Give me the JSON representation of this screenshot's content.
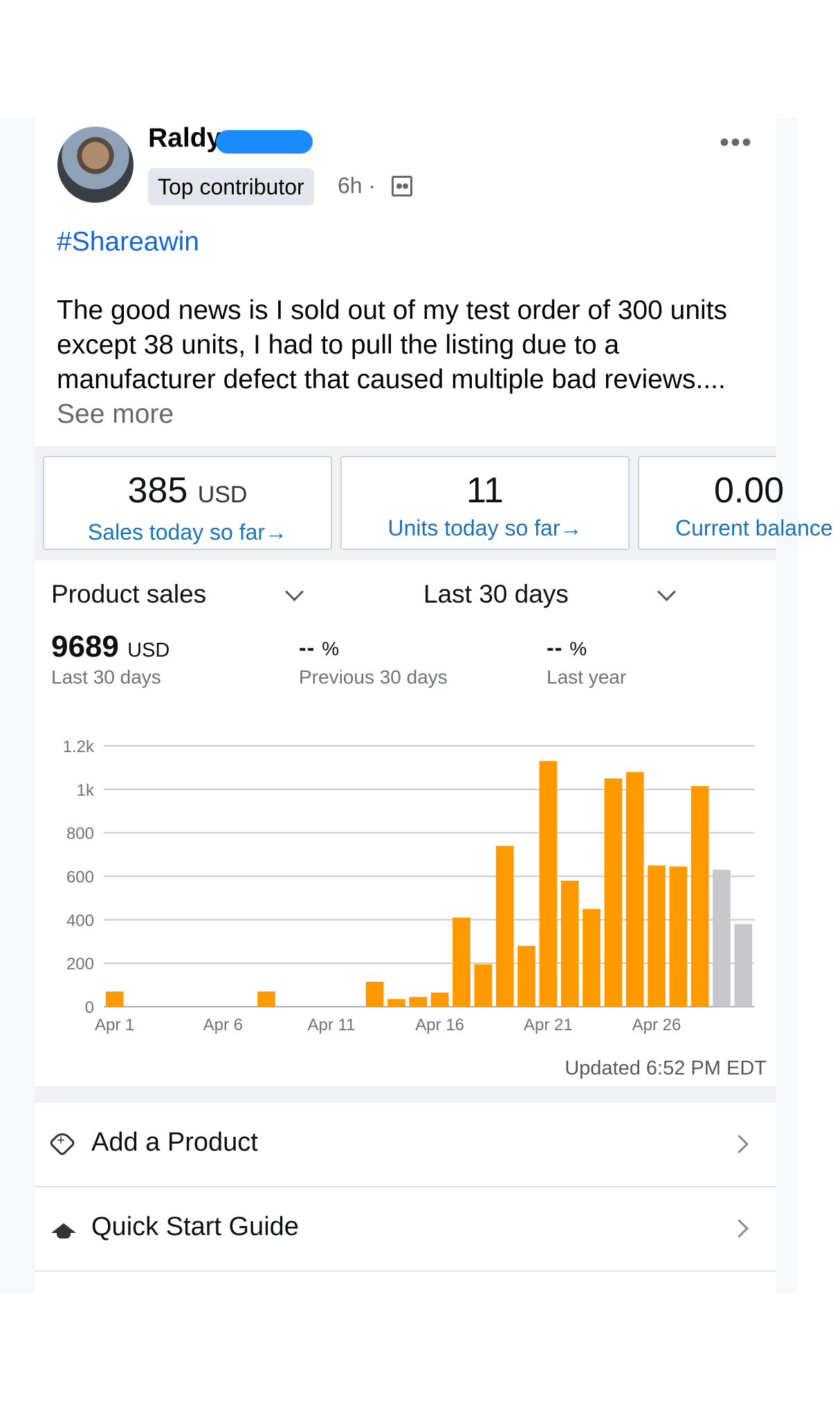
{
  "post": {
    "author_name": "Raldy",
    "badge": "Top contributor",
    "time": "6h ·",
    "hashtag": "#Shareawin",
    "body": "The good news is I sold out of my test order of 300 units except 38 units, I had to pull the listing due to a manufacturer defect that caused multiple bad reviews.... ",
    "see_more": "See more",
    "more_icon": "more-horizontal-icon"
  },
  "kpis": [
    {
      "value": "385",
      "unit": "USD",
      "link": "Sales today so far→"
    },
    {
      "value": "11",
      "unit": "",
      "link": "Units today so far→"
    },
    {
      "value": "0.00",
      "unit": "",
      "link": "Current balance"
    }
  ],
  "dropdowns": {
    "metric": "Product sales",
    "period": "Last 30 days"
  },
  "stats": [
    {
      "value": "9689",
      "unit": "USD",
      "label": "Last 30 days"
    },
    {
      "value": "--",
      "unit": "%",
      "label": "Previous 30 days"
    },
    {
      "value": "--",
      "unit": "%",
      "label": "Last year"
    }
  ],
  "chart_data": {
    "type": "bar",
    "xlabel": "",
    "ylabel": "",
    "ylim": [
      0,
      1200
    ],
    "y_ticks": [
      "0",
      "200",
      "400",
      "600",
      "800",
      "1k",
      "1.2k"
    ],
    "x_tick_labels": [
      "Apr 1",
      "Apr 6",
      "Apr 11",
      "Apr 16",
      "Apr 21",
      "Apr 26"
    ],
    "categories": [
      "Apr 1",
      "Apr 2",
      "Apr 3",
      "Apr 4",
      "Apr 5",
      "Apr 6",
      "Apr 7",
      "Apr 8",
      "Apr 9",
      "Apr 10",
      "Apr 11",
      "Apr 12",
      "Apr 13",
      "Apr 14",
      "Apr 15",
      "Apr 16",
      "Apr 17",
      "Apr 18",
      "Apr 19",
      "Apr 20",
      "Apr 21",
      "Apr 22",
      "Apr 23",
      "Apr 24",
      "Apr 25",
      "Apr 26",
      "Apr 27",
      "Apr 28",
      "Apr 29",
      "Apr 30"
    ],
    "values": [
      70,
      0,
      0,
      0,
      0,
      0,
      0,
      70,
      0,
      0,
      0,
      0,
      115,
      35,
      45,
      65,
      410,
      195,
      740,
      280,
      1130,
      580,
      450,
      1050,
      1080,
      650,
      645,
      1015,
      630,
      380
    ],
    "projected_from_index": 28,
    "colors": {
      "actual": "#ff9900",
      "projected": "#c8c8cc"
    },
    "grid": true
  },
  "updated": "Updated 6:52 PM EDT",
  "rows": [
    {
      "label": "Add a Product",
      "icon": "tag-plus-icon"
    },
    {
      "label": "Quick Start Guide",
      "icon": "graduation-cap-icon"
    }
  ]
}
